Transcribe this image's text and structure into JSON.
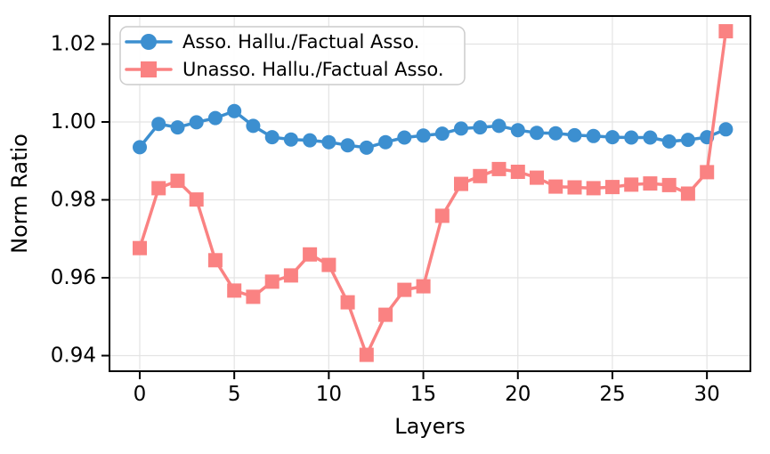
{
  "chart_data": {
    "type": "line",
    "title": "",
    "xlabel": "Layers",
    "ylabel": "Norm Ratio",
    "x": [
      0,
      1,
      2,
      3,
      4,
      5,
      6,
      7,
      8,
      9,
      10,
      11,
      12,
      13,
      14,
      15,
      16,
      17,
      18,
      19,
      20,
      21,
      22,
      23,
      24,
      25,
      26,
      27,
      28,
      29,
      30,
      31
    ],
    "series": [
      {
        "name": "Asso. Hallu./Factual Asso.",
        "color": "#3c8fd0",
        "marker": "circle",
        "values": [
          0.9935,
          0.9995,
          0.9986,
          0.9999,
          1.001,
          1.0028,
          0.999,
          0.9961,
          0.9955,
          0.9953,
          0.9948,
          0.994,
          0.9934,
          0.9948,
          0.996,
          0.9965,
          0.997,
          0.9983,
          0.9986,
          0.999,
          0.9979,
          0.9972,
          0.9971,
          0.9966,
          0.9964,
          0.9961,
          0.996,
          0.996,
          0.995,
          0.9954,
          0.9961,
          0.9981
        ]
      },
      {
        "name": "Unasso. Hallu./Factual Asso.",
        "color": "#fa8282",
        "marker": "square",
        "values": [
          0.9676,
          0.983,
          0.9849,
          0.9801,
          0.9645,
          0.9567,
          0.9551,
          0.959,
          0.9606,
          0.966,
          0.9633,
          0.9537,
          0.9402,
          0.9505,
          0.9569,
          0.9578,
          0.9759,
          0.9841,
          0.9861,
          0.9879,
          0.9872,
          0.9857,
          0.9834,
          0.9832,
          0.983,
          0.9833,
          0.9839,
          0.9842,
          0.9838,
          0.9816,
          0.9871,
          1.0233
        ]
      }
    ],
    "xticks": [
      0,
      5,
      10,
      15,
      20,
      25,
      30
    ],
    "yticks": [
      0.94,
      0.96,
      0.98,
      1.0,
      1.02
    ],
    "xlim": [
      -1.6,
      32.3
    ],
    "ylim": [
      0.936,
      1.0272
    ],
    "grid": true,
    "legend_position": "upper left",
    "grid_color": "#e3e3e3",
    "axis_color": "#000000",
    "legend_border_color": "#cccccc"
  }
}
